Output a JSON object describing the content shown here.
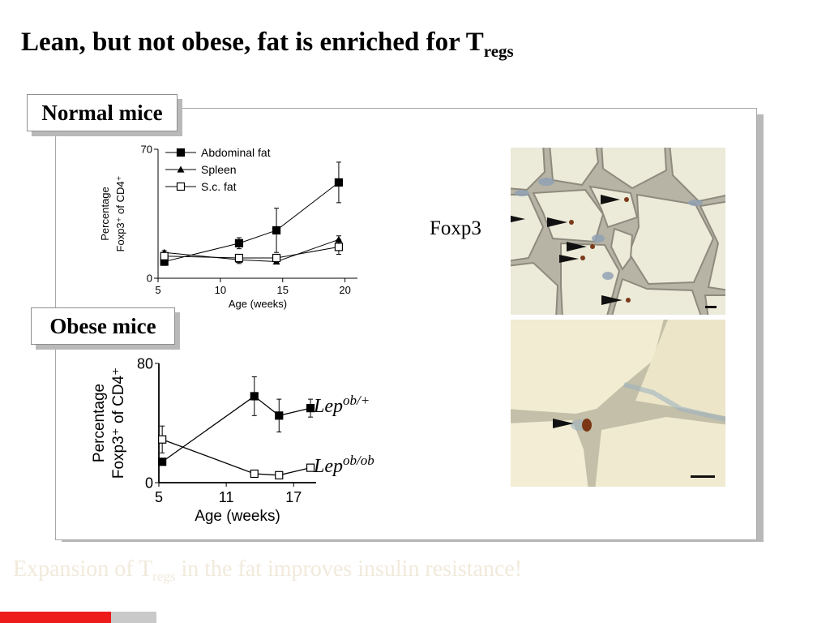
{
  "slide": {
    "title_main": "Lean, but not obese, fat is enriched for T",
    "title_sub": "regs",
    "footer_main": "Expansion of T",
    "footer_sub": "regs",
    "footer_rest": " in the fat improves insulin resistance!",
    "normal_label": "Normal mice",
    "obese_label": "Obese mice",
    "foxp3_label": "Foxp3",
    "lep_het_base": "Lep",
    "lep_het_sup": "ob/+",
    "lep_ob_base": "Lep",
    "lep_ob_sup": "ob/ob",
    "colors": {
      "title": "#000000",
      "footer": "#f1eadb",
      "accent_red": "#ee1b1b"
    }
  },
  "chart_data": [
    {
      "type": "line",
      "title": "",
      "xlabel": "Age (weeks)",
      "ylabel_line1": "Percentage",
      "ylabel_line2": "Foxp3⁺ of CD4⁺",
      "xlim": [
        5,
        21
      ],
      "ylim": [
        0,
        70
      ],
      "xticks": [
        5,
        10,
        15,
        20
      ],
      "yticks": [
        0,
        70
      ],
      "legend_position": "top-left",
      "series": [
        {
          "name": "Abdominal fat",
          "marker": "square-filled",
          "x": [
            5.5,
            11.5,
            14.5,
            19.5
          ],
          "y": [
            9,
            19,
            26,
            52
          ],
          "err": [
            2,
            3,
            12,
            11
          ]
        },
        {
          "name": "Spleen",
          "marker": "triangle-filled",
          "x": [
            5.5,
            11.5,
            14.5,
            19.5
          ],
          "y": [
            14,
            10,
            9,
            21
          ],
          "err": [
            1,
            2,
            1,
            2
          ]
        },
        {
          "name": "S.c. fat",
          "marker": "square-open",
          "x": [
            5.5,
            11.5,
            14.5,
            19.5
          ],
          "y": [
            12,
            11,
            11,
            17
          ],
          "err": [
            2,
            2,
            2,
            4
          ]
        }
      ]
    },
    {
      "type": "line",
      "title": "",
      "xlabel": "Age (weeks)",
      "ylabel_line1": "Percentage",
      "ylabel_line2": "Foxp3⁺ of CD4⁺",
      "xlim": [
        5,
        19
      ],
      "ylim": [
        0,
        80
      ],
      "xticks": [
        5,
        11,
        17
      ],
      "yticks": [
        0,
        80
      ],
      "series": [
        {
          "name": "Lep ob/+",
          "marker": "square-filled",
          "x": [
            5.3,
            13.5,
            15.7,
            18.5
          ],
          "y": [
            14,
            58,
            45,
            50
          ],
          "err": [
            0,
            13,
            11,
            6
          ]
        },
        {
          "name": "Lep ob/ob",
          "marker": "square-open",
          "x": [
            5.3,
            13.5,
            15.7,
            18.5
          ],
          "y": [
            29,
            6,
            5,
            10
          ],
          "err": [
            9,
            0,
            0,
            0
          ]
        }
      ]
    }
  ]
}
